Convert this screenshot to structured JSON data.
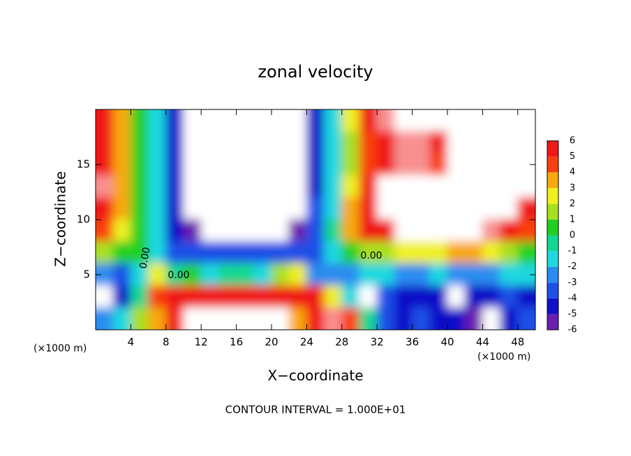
{
  "chart_data": {
    "type": "contour",
    "title": "zonal velocity",
    "x_label": "X−coordinate",
    "y_label": "Z−coordinate",
    "x_unit_label": "(×1000 m)",
    "y_unit_label": "(×1000 m)",
    "footer": "CONTOUR INTERVAL = 1.000E+01",
    "xlim": [
      0,
      50
    ],
    "ylim": [
      0,
      20
    ],
    "xticks": [
      4,
      8,
      12,
      16,
      20,
      24,
      28,
      32,
      36,
      40,
      44,
      48
    ],
    "yticks": [
      5,
      10,
      15
    ],
    "x": [
      1,
      3,
      5,
      7,
      9,
      11,
      13,
      15,
      17,
      19,
      21,
      23,
      25,
      27,
      29,
      31,
      33,
      35,
      37,
      39,
      41,
      43,
      45,
      47,
      49
    ],
    "y": [
      19,
      17,
      15,
      13,
      11,
      9,
      7,
      5,
      3,
      1
    ],
    "z": [
      [
        5,
        3,
        0,
        -2,
        -5,
        -8,
        -8,
        -8,
        -8,
        -8,
        -8,
        -8,
        -5,
        -2,
        2,
        5,
        6,
        8,
        8,
        8,
        8,
        8,
        8,
        8,
        8
      ],
      [
        5,
        3,
        0,
        -2,
        -5,
        -8,
        -8,
        -8,
        -8,
        -8,
        -8,
        -8,
        -5,
        -2,
        1,
        4,
        5,
        6,
        6,
        5,
        8,
        8,
        8,
        8,
        8
      ],
      [
        5,
        3,
        0,
        -2,
        -5,
        -8,
        -8,
        -8,
        -8,
        -8,
        -8,
        -8,
        -5,
        -2,
        1,
        4,
        5,
        6,
        6,
        4,
        8,
        8,
        8,
        8,
        8
      ],
      [
        6,
        3,
        0,
        -2,
        -5,
        -8,
        -8,
        -8,
        -8,
        -8,
        -8,
        -8,
        -5,
        -2,
        2,
        5,
        8,
        8,
        8,
        8,
        8,
        8,
        8,
        8,
        8
      ],
      [
        5,
        3,
        0,
        -2,
        -5,
        -7,
        -8,
        -8,
        -8,
        -8,
        -8,
        -7,
        -4,
        -2,
        3,
        5,
        8,
        8,
        8,
        8,
        8,
        8,
        8,
        8,
        5
      ],
      [
        4,
        2,
        0,
        -2,
        -5,
        -6,
        -7,
        -8,
        -8,
        -8,
        -8,
        -6,
        -4,
        -1,
        3,
        5,
        5,
        8,
        8,
        8,
        8,
        8,
        6,
        5,
        4
      ],
      [
        1,
        0,
        0,
        -2,
        -4,
        -4,
        -4,
        -4,
        -4,
        -4,
        -4,
        -4,
        -4,
        -2,
        0,
        1,
        1,
        2,
        2,
        2,
        3,
        3,
        2,
        1,
        0
      ],
      [
        -3,
        -4,
        -2,
        2,
        -1,
        0,
        -2,
        -1,
        -1,
        -2,
        1,
        2,
        -3,
        -3,
        -3,
        -2,
        -2,
        -3,
        -3,
        -2,
        -3,
        -3,
        -3,
        -2,
        -2
      ],
      [
        -8,
        -5,
        -1,
        4,
        5,
        5,
        5,
        5,
        5,
        5,
        5,
        5,
        5,
        2,
        -2,
        -7,
        -4,
        -5,
        -5,
        -5,
        -7,
        -5,
        -5,
        -4,
        -5
      ],
      [
        -3,
        -2,
        1,
        3,
        5,
        8,
        8,
        8,
        8,
        8,
        8,
        3,
        5,
        6,
        4,
        -1,
        -4,
        -5,
        -4,
        -5,
        -5,
        -6,
        -8,
        -5,
        -4
      ]
    ],
    "levels": [
      -6,
      -5,
      -4,
      -3,
      -2,
      -1,
      0,
      1,
      2,
      3,
      4,
      5,
      6
    ],
    "colors": [
      "#6a1fb0",
      "#1010c8",
      "#1f4fe6",
      "#2a8cf0",
      "#1ed8e0",
      "#12d890",
      "#20d020",
      "#a8e020",
      "#f0f020",
      "#f8a810",
      "#f84010",
      "#f01818",
      "#f89090"
    ],
    "out_of_range_color": "#ffffff",
    "contour_labels": [
      {
        "value": 0,
        "label": "0.00"
      },
      {
        "value": 0,
        "label": "0.00"
      },
      {
        "value": 0,
        "label": "0.00"
      }
    ]
  }
}
